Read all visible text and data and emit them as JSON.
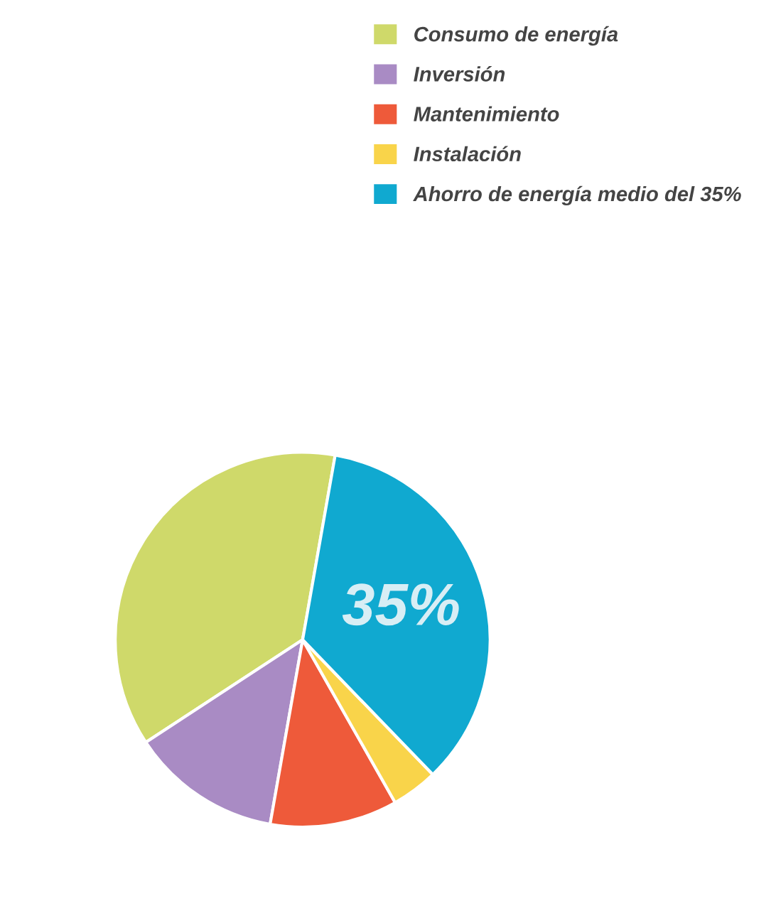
{
  "chart_data": {
    "type": "pie",
    "categories": [
      "Consumo de energía",
      "Inversión",
      "Mantenimiento",
      "Instalación",
      "Ahorro de energía medio del 35%"
    ],
    "values": [
      37,
      13,
      11,
      4,
      35
    ],
    "colors": [
      "#cfd96a",
      "#a98bc4",
      "#ee5a3a",
      "#f9d44a",
      "#10a9d0"
    ],
    "value_labels": [
      null,
      null,
      null,
      null,
      "35%"
    ],
    "legend": "top right"
  }
}
